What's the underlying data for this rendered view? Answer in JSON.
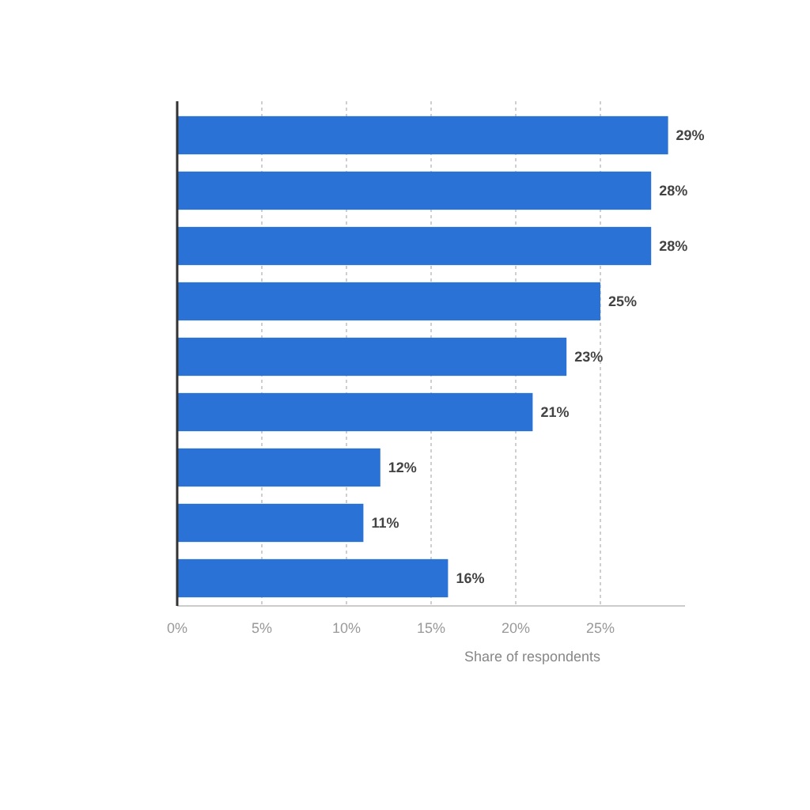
{
  "chart_data": {
    "type": "bar",
    "orientation": "horizontal",
    "xlabel": "Share of respondents",
    "categories": [
      null,
      null,
      null,
      null,
      null,
      null,
      null,
      null,
      null
    ],
    "values": [
      29,
      28,
      28,
      25,
      23,
      21,
      12,
      11,
      16
    ],
    "value_labels": [
      "29%",
      "28%",
      "28%",
      "25%",
      "23%",
      "21%",
      "12%",
      "11%",
      "16%"
    ],
    "color": "#2a72d6",
    "xlim": [
      0,
      30
    ],
    "xticks": [
      {
        "value": 0,
        "label": "0%"
      },
      {
        "value": 5,
        "label": "5%"
      },
      {
        "value": 10,
        "label": "10%"
      },
      {
        "value": 15,
        "label": "15%"
      },
      {
        "value": 20,
        "label": "20%"
      },
      {
        "value": 25,
        "label": "25%"
      }
    ],
    "grid": "x"
  }
}
